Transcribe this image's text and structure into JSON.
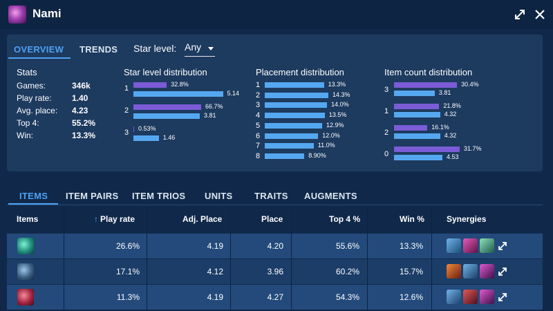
{
  "header": {
    "title": "Nami",
    "icons": [
      "champion-portrait-icon",
      "expand-icon",
      "close-icon"
    ]
  },
  "tabs": [
    "OVERVIEW",
    "TRENDS"
  ],
  "star_filter": {
    "label": "Star level:",
    "value": "Any"
  },
  "stats": {
    "title": "Stats",
    "rows": [
      {
        "label": "Games:",
        "value": "346k"
      },
      {
        "label": "Play rate:",
        "value": "1.40"
      },
      {
        "label": "Avg. place:",
        "value": "4.23"
      },
      {
        "label": "Top 4:",
        "value": "55.2%"
      },
      {
        "label": "Win:",
        "value": "13.3%"
      }
    ]
  },
  "star_distribution": {
    "title": "Star level distribution",
    "rows": [
      {
        "label": "1",
        "purple": 32.8,
        "purple_label": "32.8%",
        "blue": 5.14,
        "blue_label": "5.14"
      },
      {
        "label": "2",
        "purple": 66.7,
        "purple_label": "66.7%",
        "blue": 3.81,
        "blue_label": "3.81"
      },
      {
        "label": "3",
        "purple": 0.53,
        "purple_label": "0.53%",
        "blue": 1.46,
        "blue_label": "1.46"
      }
    ]
  },
  "placement_distribution": {
    "title": "Placement distribution",
    "rows": [
      {
        "label": "1",
        "value": 13.3,
        "value_label": "13.3%"
      },
      {
        "label": "2",
        "value": 14.3,
        "value_label": "14.3%"
      },
      {
        "label": "3",
        "value": 14.0,
        "value_label": "14.0%"
      },
      {
        "label": "4",
        "value": 13.5,
        "value_label": "13.5%"
      },
      {
        "label": "5",
        "value": 12.9,
        "value_label": "12.9%"
      },
      {
        "label": "6",
        "value": 12.0,
        "value_label": "12.0%"
      },
      {
        "label": "7",
        "value": 11.0,
        "value_label": "11.0%"
      },
      {
        "label": "8",
        "value": 8.9,
        "value_label": "8.90%"
      }
    ]
  },
  "item_count_distribution": {
    "title": "Item count distribution",
    "rows": [
      {
        "label": "3",
        "purple": 30.4,
        "purple_label": "30.4%",
        "blue": 3.81,
        "blue_label": "3.81"
      },
      {
        "label": "1",
        "purple": 21.8,
        "purple_label": "21.8%",
        "blue": 4.32,
        "blue_label": "4.32"
      },
      {
        "label": "2",
        "purple": 16.1,
        "purple_label": "16.1%",
        "blue": 4.32,
        "blue_label": "4.32"
      },
      {
        "label": "0",
        "purple": 31.7,
        "purple_label": "31.7%",
        "blue": 4.53,
        "blue_label": "4.53"
      }
    ]
  },
  "bottom_tabs": [
    "ITEMS",
    "ITEM PAIRS",
    "ITEM TRIOS",
    "UNITS",
    "TRAITS",
    "AUGMENTS"
  ],
  "table": {
    "columns": [
      "Items",
      "Play rate",
      "Adj. Place",
      "Place",
      "Top 4 %",
      "Win %",
      "Synergies"
    ],
    "sort_icon": "sort-up-arrow-icon",
    "rows": [
      {
        "item_icon": "blue-green-item-icon",
        "play_rate": "26.6%",
        "adj_place": "4.19",
        "place": "4.20",
        "top4": "55.6%",
        "win": "13.3%",
        "synergies": [
          "blue-item-icon",
          "pink-item-icon",
          "green-item-icon"
        ]
      },
      {
        "item_icon": "shield-item-icon",
        "play_rate": "17.1%",
        "adj_place": "4.12",
        "place": "3.96",
        "top4": "60.2%",
        "win": "15.7%",
        "synergies": [
          "orange-item-icon",
          "blue-item-icon",
          "magenta-item-icon"
        ]
      },
      {
        "item_icon": "crimson-item-icon",
        "play_rate": "11.3%",
        "adj_place": "4.19",
        "place": "4.27",
        "top4": "54.3%",
        "win": "12.6%",
        "synergies": [
          "blue-item-icon",
          "red-item-icon",
          "magenta-item-icon"
        ]
      }
    ]
  },
  "colors": {
    "background": "#10294a",
    "panel": "#1d3a5f",
    "accent": "#4ea1f3",
    "purple_bar": "#7b5bd6",
    "blue_bar": "#55a8f0",
    "row_odd": "#234a7b",
    "row_even": "#1b3d67"
  }
}
